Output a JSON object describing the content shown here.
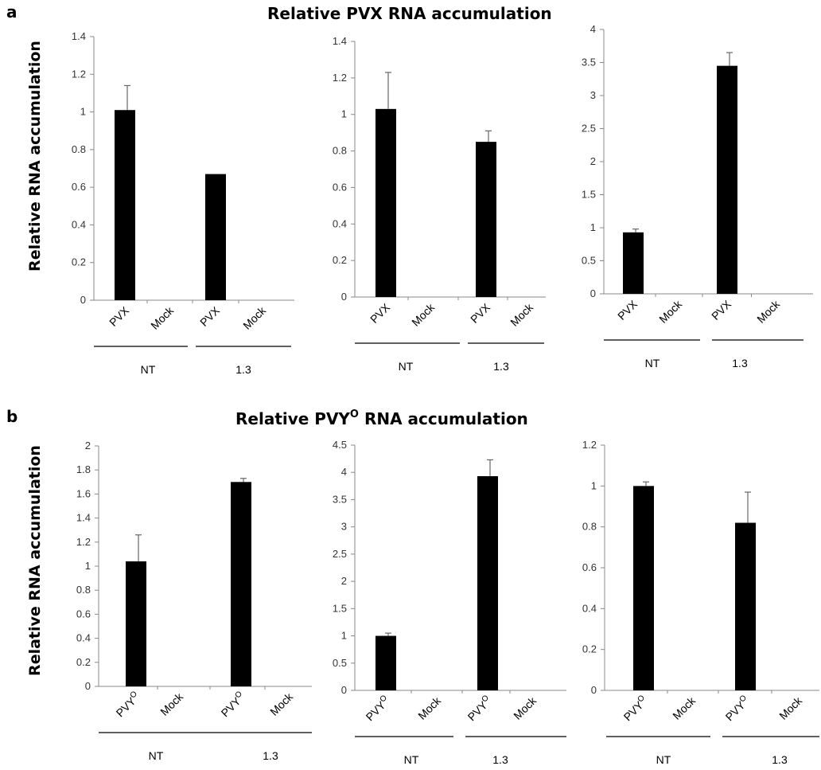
{
  "figure": {
    "panel_a": {
      "letter": "a",
      "title": "Relative PVX RNA accumulation",
      "ylabel": "Relative RNA accumulation"
    },
    "panel_b": {
      "letter": "b",
      "title_main": "Relative PVY",
      "title_sup": "O",
      "title_rest": " RNA accumulation",
      "ylabel": "Relative RNA accumulation"
    }
  },
  "chart_data": [
    {
      "type": "bar",
      "panel": "a",
      "categories": [
        "PVX",
        "Mock",
        "PVX",
        "Mock"
      ],
      "groups": [
        "NT",
        "1.3"
      ],
      "values": [
        1.01,
        0,
        0.67,
        0
      ],
      "errors": [
        0.13,
        0,
        0,
        0
      ],
      "ylim": [
        0,
        1.4
      ],
      "yticks": [
        "0",
        "0.2",
        "0.4",
        "0.6",
        "0.8",
        "1",
        "1.2",
        "1.4"
      ],
      "ylabel": "Relative RNA accumulation"
    },
    {
      "type": "bar",
      "panel": "a",
      "categories": [
        "PVX",
        "Mock",
        "PVX",
        "Mock"
      ],
      "groups": [
        "NT",
        "1.3"
      ],
      "values": [
        1.03,
        0,
        0.85,
        0
      ],
      "errors": [
        0.2,
        0,
        0.06,
        0
      ],
      "ylim": [
        0,
        1.4
      ],
      "yticks": [
        "0",
        "0.2",
        "0.4",
        "0.6",
        "0.8",
        "1",
        "1.2",
        "1.4"
      ]
    },
    {
      "type": "bar",
      "panel": "a",
      "categories": [
        "PVX",
        "Mock",
        "PVX",
        "Mock"
      ],
      "groups": [
        "NT",
        "1.3"
      ],
      "values": [
        0.93,
        0,
        3.45,
        0
      ],
      "errors": [
        0.05,
        0,
        0.2,
        0
      ],
      "ylim": [
        0,
        4
      ],
      "yticks": [
        "0",
        "0.5",
        "1",
        "1.5",
        "2",
        "2.5",
        "3",
        "3.5",
        "4"
      ]
    },
    {
      "type": "bar",
      "panel": "b",
      "categories": [
        "PVYO",
        "Mock",
        "PVYO",
        "Mock"
      ],
      "groups": [
        "NT",
        "1.3"
      ],
      "values": [
        1.04,
        0,
        1.7,
        0
      ],
      "errors": [
        0.22,
        0,
        0.03,
        0
      ],
      "ylim": [
        0,
        2
      ],
      "yticks": [
        "0",
        "0.2",
        "0.4",
        "0.6",
        "0.8",
        "1",
        "1.2",
        "1.4",
        "1.6",
        "1.8",
        "2"
      ],
      "ylabel": "Relative RNA accumulation"
    },
    {
      "type": "bar",
      "panel": "b",
      "categories": [
        "PVYO",
        "Mock",
        "PVYO",
        "Mock"
      ],
      "groups": [
        "NT",
        "1.3"
      ],
      "values": [
        1,
        0,
        3.93,
        0
      ],
      "errors": [
        0.05,
        0,
        0.3,
        0
      ],
      "ylim": [
        0,
        4.5
      ],
      "yticks": [
        "0",
        "0.5",
        "1",
        "1.5",
        "2",
        "2.5",
        "3",
        "3.5",
        "4",
        "4.5"
      ]
    },
    {
      "type": "bar",
      "panel": "b",
      "categories": [
        "PVYO",
        "Mock",
        "PVYO",
        "Mock"
      ],
      "groups": [
        "NT",
        "1.3"
      ],
      "values": [
        1,
        0,
        0.82,
        0
      ],
      "errors": [
        0.02,
        0,
        0.15,
        0
      ],
      "ylim": [
        0,
        1.2
      ],
      "yticks": [
        "0",
        "0.2",
        "0.4",
        "0.6",
        "0.8",
        "1",
        "1.2"
      ]
    }
  ]
}
